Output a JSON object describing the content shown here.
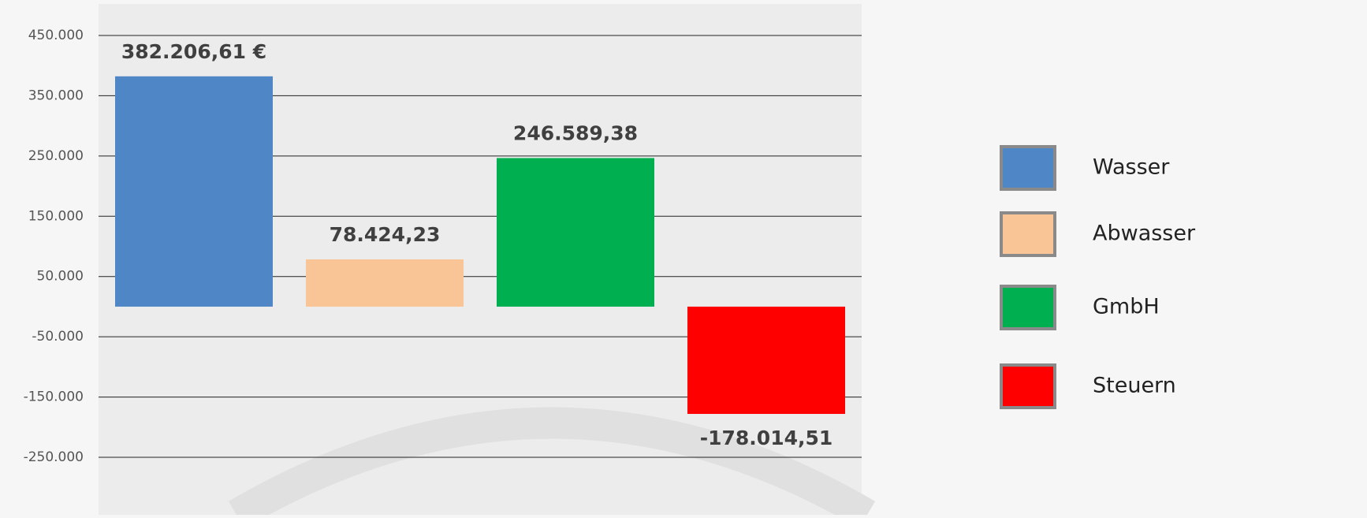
{
  "chart_data": {
    "type": "bar",
    "categories": [
      "Wasser",
      "Abwasser",
      "GmbH",
      "Steuern"
    ],
    "values": [
      382206.61,
      78424.23,
      246589.38,
      -178014.51
    ],
    "value_labels": [
      "382.206,61 €",
      "78.424,23",
      "246.589,38",
      "-178.014,51"
    ],
    "colors": [
      "#4f86c6",
      "#f9c496",
      "#00b050",
      "#ff0000"
    ],
    "ylim": [
      -250000,
      450000
    ],
    "yticks": [
      {
        "value": -250000,
        "label": "-250.000"
      },
      {
        "value": -150000,
        "label": "-150.000"
      },
      {
        "value": -50000,
        "label": "-50.000"
      },
      {
        "value": 50000,
        "label": "50.000"
      },
      {
        "value": 150000,
        "label": "150.000"
      },
      {
        "value": 250000,
        "label": "250.000"
      },
      {
        "value": 350000,
        "label": "350.000"
      },
      {
        "value": 450000,
        "label": "450.000"
      }
    ],
    "grid": true,
    "legend": "right"
  }
}
